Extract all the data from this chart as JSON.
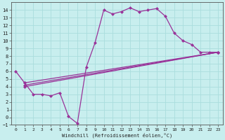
{
  "bg_color": "#c8eeee",
  "grid_color": "#aadddd",
  "line_color": "#993399",
  "xlim": [
    -0.5,
    23.5
  ],
  "ylim": [
    -1,
    15
  ],
  "xticks": [
    0,
    1,
    2,
    3,
    4,
    5,
    6,
    7,
    8,
    9,
    10,
    11,
    12,
    13,
    14,
    15,
    16,
    17,
    18,
    19,
    20,
    21,
    22,
    23
  ],
  "yticks": [
    -1,
    0,
    1,
    2,
    3,
    4,
    5,
    6,
    7,
    8,
    9,
    10,
    11,
    12,
    13,
    14
  ],
  "line1_x": [
    0,
    1,
    2,
    3,
    4,
    5,
    6,
    7,
    8,
    9,
    10,
    11,
    12,
    13,
    14,
    15,
    16,
    17,
    18,
    19,
    20,
    21,
    22,
    23
  ],
  "line1_y": [
    6.0,
    4.5,
    3.0,
    3.0,
    2.8,
    3.2,
    0.1,
    -0.8,
    6.5,
    9.7,
    14.0,
    13.5,
    13.8,
    14.3,
    13.8,
    14.0,
    14.2,
    13.2,
    11.0,
    10.0,
    9.5,
    8.5,
    8.5,
    8.5
  ],
  "line2_x": [
    1,
    23
  ],
  "line2_y": [
    4.5,
    8.5
  ],
  "line3_x": [
    1,
    23
  ],
  "line3_y": [
    4.0,
    8.5
  ],
  "line4_x": [
    1,
    23
  ],
  "line4_y": [
    4.2,
    8.5
  ],
  "xlabel": "Windchill (Refroidissement éolien,°C)",
  "markersize": 2.5,
  "linewidth": 0.9
}
